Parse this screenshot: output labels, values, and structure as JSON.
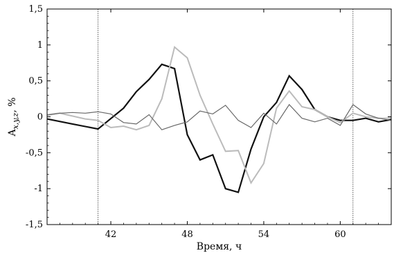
{
  "chart_data": {
    "type": "line",
    "xlabel": "Время, ч",
    "ylabel_base": "A",
    "ylabel_sub": "x,y,z",
    "ylabel_unit": ", %",
    "xlim": [
      37,
      64
    ],
    "ylim": [
      -1.5,
      1.5
    ],
    "xticks": [
      42,
      48,
      54,
      60
    ],
    "yticks": [
      -1.5,
      -1,
      -0.5,
      0,
      0.5,
      1,
      1.5
    ],
    "ytick_labels": [
      "-1,5",
      "-1",
      "-0,5",
      "0",
      "0,5",
      "1",
      "1,5"
    ],
    "vlines": [
      41,
      61
    ],
    "series": [
      {
        "color": "#111111",
        "width": 2.2,
        "x": [
          37,
          39,
          41,
          43,
          44,
          45,
          46,
          47,
          48,
          49,
          50,
          51,
          52,
          53,
          54,
          55,
          56,
          57,
          58,
          59,
          60,
          61,
          62,
          63,
          64
        ],
        "y": [
          -0.03,
          -0.1,
          -0.17,
          0.12,
          0.35,
          0.52,
          0.73,
          0.67,
          -0.25,
          -0.6,
          -0.53,
          -1.0,
          -1.05,
          -0.45,
          0.0,
          0.2,
          0.57,
          0.38,
          0.1,
          0.0,
          -0.05,
          -0.05,
          -0.02,
          -0.07,
          -0.04
        ]
      },
      {
        "color": "#bbbbbb",
        "width": 2.0,
        "x": [
          37,
          38,
          40,
          41,
          42,
          43,
          44,
          45,
          46,
          47,
          48,
          49,
          50,
          51,
          52,
          53,
          54,
          55,
          56,
          57,
          58,
          59,
          60,
          61,
          62,
          63,
          64
        ],
        "y": [
          0.03,
          0.05,
          -0.03,
          -0.05,
          -0.15,
          -0.13,
          -0.18,
          -0.12,
          0.25,
          0.97,
          0.82,
          0.3,
          -0.1,
          -0.48,
          -0.47,
          -0.92,
          -0.65,
          0.12,
          0.36,
          0.14,
          0.1,
          0.0,
          -0.08,
          0.05,
          0.0,
          -0.02,
          -0.02
        ]
      },
      {
        "color": "#666666",
        "width": 1.2,
        "x": [
          37,
          38,
          39,
          40,
          41,
          42,
          43,
          44,
          45,
          46,
          47,
          48,
          49,
          50,
          51,
          52,
          53,
          54,
          55,
          56,
          57,
          58,
          59,
          60,
          61,
          62,
          63,
          64
        ],
        "y": [
          0.02,
          0.05,
          0.06,
          0.05,
          0.07,
          0.04,
          -0.08,
          -0.1,
          0.03,
          -0.18,
          -0.12,
          -0.07,
          0.08,
          0.04,
          0.16,
          -0.05,
          -0.15,
          0.05,
          -0.1,
          0.17,
          -0.02,
          -0.07,
          -0.02,
          -0.12,
          0.17,
          0.04,
          -0.02,
          -0.05
        ]
      }
    ]
  }
}
